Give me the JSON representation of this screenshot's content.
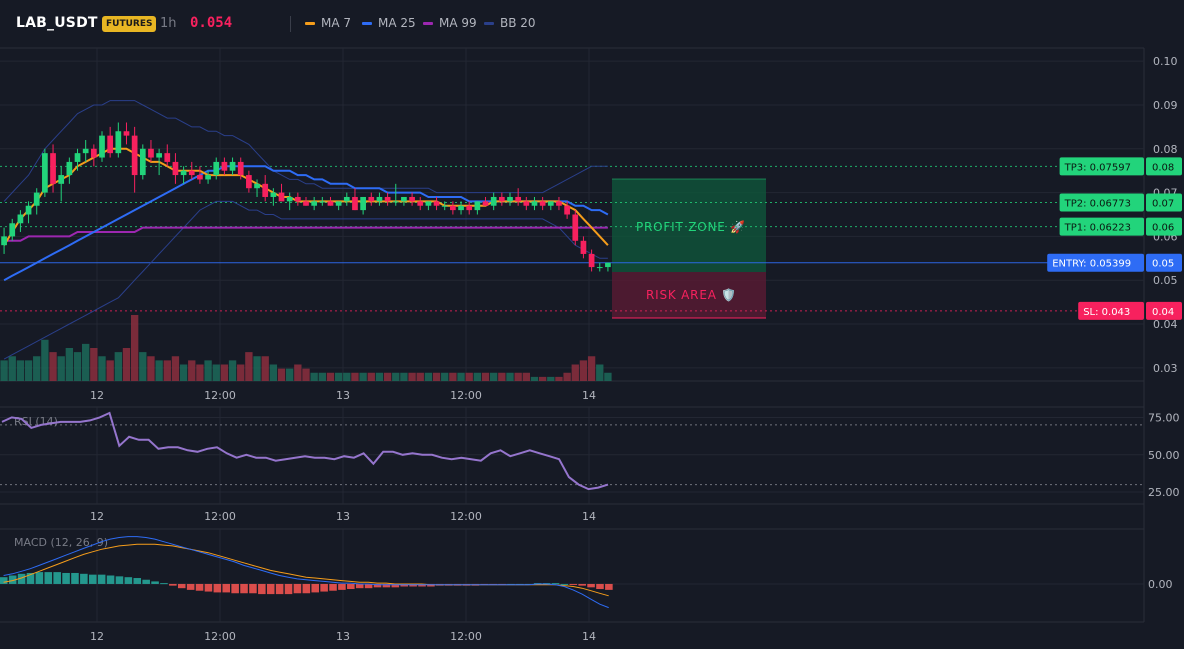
{
  "header": {
    "symbol": "LAB_USDT",
    "badge": "FUTURES",
    "timeframe": "1h",
    "price": "0.054",
    "legend": [
      {
        "name": "MA 7",
        "color": "#f59d1b"
      },
      {
        "name": "MA 25",
        "color": "#2e6cf5"
      },
      {
        "name": "MA 99",
        "color": "#9c27b0"
      },
      {
        "name": "BB 20",
        "color": "#2a3f8a"
      }
    ]
  },
  "chart_data": [
    {
      "type": "candlestick",
      "x_tick_labels": [
        "12",
        "12:00",
        "13",
        "12:00",
        "14"
      ],
      "y_tick_labels": [
        "0.10",
        "0.09",
        "0.08",
        "0.07",
        "0.06",
        "0.05",
        "0.04",
        "0.03"
      ],
      "ylim": [
        0.027,
        0.103
      ],
      "candles": [
        [
          0.058,
          0.062,
          0.056,
          0.06
        ],
        [
          0.06,
          0.064,
          0.059,
          0.063
        ],
        [
          0.063,
          0.066,
          0.061,
          0.065
        ],
        [
          0.065,
          0.068,
          0.063,
          0.067
        ],
        [
          0.067,
          0.071,
          0.065,
          0.07
        ],
        [
          0.07,
          0.08,
          0.069,
          0.079
        ],
        [
          0.079,
          0.081,
          0.07,
          0.072
        ],
        [
          0.072,
          0.076,
          0.068,
          0.074
        ],
        [
          0.074,
          0.078,
          0.072,
          0.077
        ],
        [
          0.077,
          0.08,
          0.075,
          0.079
        ],
        [
          0.079,
          0.082,
          0.077,
          0.08
        ],
        [
          0.08,
          0.081,
          0.076,
          0.078
        ],
        [
          0.078,
          0.084,
          0.077,
          0.083
        ],
        [
          0.083,
          0.085,
          0.078,
          0.079
        ],
        [
          0.079,
          0.086,
          0.078,
          0.084
        ],
        [
          0.084,
          0.086,
          0.081,
          0.083
        ],
        [
          0.083,
          0.085,
          0.07,
          0.074
        ],
        [
          0.074,
          0.081,
          0.073,
          0.08
        ],
        [
          0.08,
          0.082,
          0.077,
          0.078
        ],
        [
          0.078,
          0.08,
          0.074,
          0.079
        ],
        [
          0.079,
          0.081,
          0.076,
          0.077
        ],
        [
          0.077,
          0.079,
          0.072,
          0.074
        ],
        [
          0.074,
          0.076,
          0.072,
          0.075
        ],
        [
          0.075,
          0.077,
          0.073,
          0.074
        ],
        [
          0.074,
          0.076,
          0.072,
          0.073
        ],
        [
          0.073,
          0.075,
          0.072,
          0.074
        ],
        [
          0.074,
          0.078,
          0.073,
          0.077
        ],
        [
          0.077,
          0.078,
          0.074,
          0.075
        ],
        [
          0.075,
          0.078,
          0.074,
          0.077
        ],
        [
          0.077,
          0.078,
          0.073,
          0.074
        ],
        [
          0.074,
          0.075,
          0.07,
          0.071
        ],
        [
          0.071,
          0.073,
          0.069,
          0.072
        ],
        [
          0.072,
          0.074,
          0.068,
          0.069
        ],
        [
          0.069,
          0.071,
          0.067,
          0.07
        ],
        [
          0.07,
          0.072,
          0.068,
          0.068
        ],
        [
          0.068,
          0.07,
          0.066,
          0.069
        ],
        [
          0.069,
          0.07,
          0.067,
          0.068
        ],
        [
          0.068,
          0.069,
          0.067,
          0.067
        ],
        [
          0.067,
          0.069,
          0.066,
          0.068
        ],
        [
          0.068,
          0.069,
          0.067,
          0.068
        ],
        [
          0.068,
          0.069,
          0.067,
          0.067
        ],
        [
          0.067,
          0.068,
          0.066,
          0.068
        ],
        [
          0.068,
          0.07,
          0.067,
          0.069
        ],
        [
          0.069,
          0.071,
          0.066,
          0.066
        ],
        [
          0.066,
          0.069,
          0.065,
          0.069
        ],
        [
          0.069,
          0.07,
          0.067,
          0.068
        ],
        [
          0.068,
          0.07,
          0.067,
          0.069
        ],
        [
          0.069,
          0.07,
          0.067,
          0.068
        ],
        [
          0.068,
          0.072,
          0.067,
          0.068
        ],
        [
          0.068,
          0.069,
          0.067,
          0.069
        ],
        [
          0.069,
          0.07,
          0.067,
          0.068
        ],
        [
          0.068,
          0.069,
          0.066,
          0.067
        ],
        [
          0.067,
          0.068,
          0.066,
          0.068
        ],
        [
          0.068,
          0.069,
          0.066,
          0.067
        ],
        [
          0.067,
          0.068,
          0.066,
          0.067
        ],
        [
          0.067,
          0.068,
          0.065,
          0.066
        ],
        [
          0.066,
          0.068,
          0.065,
          0.067
        ],
        [
          0.067,
          0.068,
          0.065,
          0.066
        ],
        [
          0.066,
          0.068,
          0.065,
          0.068
        ],
        [
          0.068,
          0.069,
          0.067,
          0.067
        ],
        [
          0.067,
          0.07,
          0.066,
          0.069
        ],
        [
          0.069,
          0.07,
          0.067,
          0.068
        ],
        [
          0.068,
          0.07,
          0.067,
          0.069
        ],
        [
          0.069,
          0.071,
          0.067,
          0.068
        ],
        [
          0.068,
          0.069,
          0.066,
          0.067
        ],
        [
          0.067,
          0.069,
          0.066,
          0.068
        ],
        [
          0.068,
          0.069,
          0.066,
          0.067
        ],
        [
          0.067,
          0.068,
          0.066,
          0.068
        ],
        [
          0.068,
          0.069,
          0.066,
          0.067
        ],
        [
          0.067,
          0.068,
          0.064,
          0.065
        ],
        [
          0.065,
          0.066,
          0.058,
          0.059
        ],
        [
          0.059,
          0.06,
          0.055,
          0.056
        ],
        [
          0.056,
          0.057,
          0.052,
          0.053
        ],
        [
          0.053,
          0.054,
          0.052,
          0.053
        ],
        [
          0.053,
          0.054,
          0.052,
          0.054
        ]
      ],
      "volume": [
        5,
        6,
        5,
        5,
        6,
        10,
        7,
        6,
        8,
        7,
        9,
        8,
        6,
        5,
        7,
        8,
        16,
        7,
        6,
        5,
        5,
        6,
        4,
        5,
        4,
        5,
        4,
        4,
        5,
        4,
        7,
        6,
        6,
        4,
        3,
        3,
        4,
        3,
        2,
        2,
        2,
        2,
        2,
        2,
        2,
        2,
        2,
        2,
        2,
        2,
        2,
        2,
        2,
        2,
        2,
        2,
        2,
        2,
        2,
        2,
        2,
        2,
        2,
        2,
        2,
        1,
        1,
        1,
        1,
        2,
        4,
        5,
        6,
        4,
        2
      ],
      "ma7": [
        0.058,
        0.061,
        0.064,
        0.066,
        0.068,
        0.071,
        0.072,
        0.073,
        0.074,
        0.076,
        0.077,
        0.078,
        0.079,
        0.08,
        0.08,
        0.08,
        0.079,
        0.078,
        0.077,
        0.077,
        0.076,
        0.075,
        0.075,
        0.075,
        0.075,
        0.074,
        0.074,
        0.074,
        0.074,
        0.074,
        0.073,
        0.072,
        0.071,
        0.07,
        0.069,
        0.069,
        0.068,
        0.068,
        0.068,
        0.068,
        0.068,
        0.068,
        0.068,
        0.068,
        0.068,
        0.068,
        0.068,
        0.068,
        0.068,
        0.068,
        0.068,
        0.068,
        0.068,
        0.068,
        0.067,
        0.067,
        0.067,
        0.067,
        0.067,
        0.067,
        0.068,
        0.068,
        0.068,
        0.068,
        0.068,
        0.068,
        0.068,
        0.068,
        0.068,
        0.067,
        0.066,
        0.064,
        0.062,
        0.06,
        0.058
      ],
      "ma25": [
        0.05,
        0.051,
        0.052,
        0.053,
        0.054,
        0.055,
        0.056,
        0.057,
        0.058,
        0.059,
        0.06,
        0.061,
        0.062,
        0.063,
        0.064,
        0.065,
        0.066,
        0.067,
        0.068,
        0.069,
        0.07,
        0.071,
        0.072,
        0.073,
        0.074,
        0.075,
        0.075,
        0.076,
        0.076,
        0.076,
        0.076,
        0.076,
        0.076,
        0.075,
        0.075,
        0.075,
        0.074,
        0.074,
        0.073,
        0.073,
        0.072,
        0.072,
        0.072,
        0.071,
        0.071,
        0.071,
        0.071,
        0.07,
        0.07,
        0.07,
        0.07,
        0.07,
        0.069,
        0.069,
        0.069,
        0.069,
        0.069,
        0.068,
        0.068,
        0.068,
        0.068,
        0.068,
        0.068,
        0.068,
        0.068,
        0.068,
        0.068,
        0.068,
        0.068,
        0.068,
        0.067,
        0.067,
        0.066,
        0.066,
        0.065
      ],
      "ma99": [
        0.059,
        0.059,
        0.059,
        0.06,
        0.06,
        0.06,
        0.06,
        0.06,
        0.06,
        0.061,
        0.061,
        0.061,
        0.061,
        0.061,
        0.061,
        0.061,
        0.061,
        0.062,
        0.062,
        0.062,
        0.062,
        0.062,
        0.062,
        0.062,
        0.062,
        0.062,
        0.062,
        0.062,
        0.062,
        0.062,
        0.062,
        0.062,
        0.062,
        0.062,
        0.062,
        0.062,
        0.062,
        0.062,
        0.062,
        0.062,
        0.062,
        0.062,
        0.062,
        0.062,
        0.062,
        0.062,
        0.062,
        0.062,
        0.062,
        0.062,
        0.062,
        0.062,
        0.062,
        0.062,
        0.062,
        0.062,
        0.062,
        0.062,
        0.062,
        0.062,
        0.062,
        0.062,
        0.062,
        0.062,
        0.062,
        0.062,
        0.062,
        0.062,
        0.062,
        0.062,
        0.062,
        0.062,
        0.062,
        0.062,
        0.062
      ],
      "bb_upper": [
        0.068,
        0.07,
        0.072,
        0.074,
        0.077,
        0.08,
        0.082,
        0.084,
        0.086,
        0.088,
        0.089,
        0.09,
        0.09,
        0.091,
        0.091,
        0.091,
        0.091,
        0.09,
        0.089,
        0.088,
        0.087,
        0.087,
        0.086,
        0.085,
        0.085,
        0.084,
        0.084,
        0.083,
        0.083,
        0.082,
        0.081,
        0.079,
        0.077,
        0.075,
        0.074,
        0.073,
        0.073,
        0.072,
        0.072,
        0.071,
        0.071,
        0.071,
        0.071,
        0.071,
        0.071,
        0.071,
        0.071,
        0.071,
        0.071,
        0.071,
        0.071,
        0.071,
        0.071,
        0.07,
        0.07,
        0.07,
        0.07,
        0.07,
        0.07,
        0.07,
        0.07,
        0.07,
        0.07,
        0.07,
        0.07,
        0.07,
        0.07,
        0.071,
        0.072,
        0.073,
        0.074,
        0.075,
        0.076,
        0.076,
        0.076
      ],
      "bb_lower": [
        0.032,
        0.033,
        0.034,
        0.035,
        0.036,
        0.037,
        0.038,
        0.039,
        0.04,
        0.041,
        0.042,
        0.043,
        0.044,
        0.045,
        0.046,
        0.048,
        0.05,
        0.052,
        0.054,
        0.056,
        0.058,
        0.06,
        0.062,
        0.064,
        0.066,
        0.067,
        0.068,
        0.068,
        0.068,
        0.067,
        0.066,
        0.066,
        0.065,
        0.065,
        0.064,
        0.064,
        0.064,
        0.064,
        0.064,
        0.064,
        0.064,
        0.064,
        0.064,
        0.064,
        0.064,
        0.064,
        0.064,
        0.064,
        0.064,
        0.064,
        0.064,
        0.064,
        0.064,
        0.064,
        0.064,
        0.064,
        0.064,
        0.064,
        0.064,
        0.064,
        0.064,
        0.064,
        0.064,
        0.064,
        0.064,
        0.064,
        0.064,
        0.063,
        0.062,
        0.06,
        0.058,
        0.057,
        0.056,
        0.055,
        0.055
      ],
      "levels": [
        {
          "label": "TP3: 0.07597",
          "axis_label": "0.08",
          "value": 0.07597,
          "color": "#22d47b"
        },
        {
          "label": "TP2: 0.06773",
          "axis_label": "0.07",
          "value": 0.06773,
          "color": "#22d47b"
        },
        {
          "label": "TP1: 0.06223",
          "axis_label": "0.06",
          "value": 0.06223,
          "color": "#22d47b"
        },
        {
          "label": "ENTRY: 0.05399",
          "axis_label": "0.05",
          "value": 0.05399,
          "color": "#2e6cf5"
        },
        {
          "label": "SL: 0.043",
          "axis_label": "0.04",
          "value": 0.043,
          "color": "#f7215e"
        }
      ],
      "zones": {
        "profit": "PROFIT ZONE 🚀",
        "risk": "RISK AREA 🛡️"
      }
    },
    {
      "type": "line",
      "title": "RSI (14)",
      "y_tick_labels": [
        "75.00",
        "50.00",
        "25.00"
      ],
      "ylim": [
        17,
        82
      ],
      "overbought": 70,
      "oversold": 30,
      "values": [
        72,
        75,
        74,
        68,
        70,
        71,
        72,
        72,
        72,
        73,
        75,
        78,
        56,
        62,
        60,
        60,
        54,
        55,
        55,
        53,
        52,
        54,
        55,
        51,
        48,
        50,
        48,
        48,
        46,
        47,
        48,
        49,
        48,
        48,
        47,
        49,
        48,
        51,
        44,
        52,
        52,
        50,
        51,
        50,
        50,
        48,
        47,
        48,
        47,
        46,
        51,
        53,
        49,
        51,
        53,
        51,
        49,
        47,
        35,
        30,
        27,
        28,
        30
      ]
    },
    {
      "type": "bar",
      "title": "MACD (12, 26, 9)",
      "y_tick_labels": [
        "0.00"
      ],
      "ylim": [
        -0.0045,
        0.0065
      ],
      "histogram": [
        0.0008,
        0.001,
        0.0012,
        0.0013,
        0.0014,
        0.0014,
        0.0014,
        0.0013,
        0.0013,
        0.0012,
        0.0011,
        0.0011,
        0.001,
        0.0009,
        0.0008,
        0.0007,
        0.0005,
        0.0003,
        0.0001,
        -0.0002,
        -0.0005,
        -0.0007,
        -0.0008,
        -0.0009,
        -0.001,
        -0.001,
        -0.0011,
        -0.0011,
        -0.0011,
        -0.0012,
        -0.0012,
        -0.0012,
        -0.0012,
        -0.0011,
        -0.0011,
        -0.001,
        -0.0009,
        -0.0008,
        -0.0007,
        -0.0006,
        -0.0005,
        -0.0005,
        -0.0004,
        -0.0004,
        -0.0004,
        -0.0003,
        -0.0003,
        -0.0003,
        -0.0003,
        -0.0002,
        -0.0002,
        -0.0002,
        -0.0002,
        -0.0002,
        -0.0001,
        -0.0001,
        -0.0001,
        0.0,
        0.0,
        0.0,
        0.0001,
        0.0001,
        0.0001,
        0.0,
        -0.0001,
        -0.0002,
        -0.0004,
        -0.0006,
        -0.0007
      ],
      "macd_line": [
        0.001,
        0.0012,
        0.0015,
        0.0018,
        0.0022,
        0.0026,
        0.003,
        0.0034,
        0.0038,
        0.0042,
        0.0046,
        0.005,
        0.0053,
        0.0055,
        0.0056,
        0.0056,
        0.0055,
        0.0053,
        0.005,
        0.0047,
        0.0044,
        0.0041,
        0.0038,
        0.0035,
        0.0032,
        0.0029,
        0.0026,
        0.0022,
        0.0019,
        0.0016,
        0.0013,
        0.001,
        0.0008,
        0.0006,
        0.0005,
        0.0004,
        0.0003,
        0.0002,
        0.0001,
        0.0001,
        0.0,
        0.0,
        -0.0001,
        -0.0001,
        -0.0001,
        -0.0001,
        -0.0001,
        -0.0001,
        -0.0001,
        -0.0001,
        -0.0001,
        -0.0001,
        -0.0001,
        -0.0001,
        -0.0001,
        -0.0001,
        -0.0001,
        -0.0001,
        -0.0001,
        -0.0001,
        0.0,
        0.0,
        -0.0001,
        -0.0003,
        -0.0007,
        -0.0012,
        -0.0018,
        -0.0024,
        -0.0028
      ],
      "signal_line": [
        0.0002,
        0.0004,
        0.0007,
        0.0011,
        0.0015,
        0.0019,
        0.0023,
        0.0027,
        0.0031,
        0.0035,
        0.0038,
        0.0041,
        0.0043,
        0.0045,
        0.0046,
        0.0047,
        0.0047,
        0.0047,
        0.0046,
        0.0045,
        0.0043,
        0.0041,
        0.0039,
        0.0037,
        0.0034,
        0.0031,
        0.0028,
        0.0025,
        0.0022,
        0.0019,
        0.0016,
        0.0014,
        0.0012,
        0.001,
        0.0008,
        0.0007,
        0.0006,
        0.0005,
        0.0004,
        0.0003,
        0.0002,
        0.0002,
        0.0001,
        0.0001,
        0.0,
        0.0,
        0.0,
        0.0,
        -0.0001,
        -0.0001,
        -0.0001,
        -0.0001,
        -0.0001,
        -0.0001,
        -0.0001,
        -0.0001,
        -0.0001,
        -0.0001,
        -0.0001,
        -0.0001,
        -0.0001,
        -0.0001,
        -0.0001,
        -0.0002,
        -0.0003,
        -0.0005,
        -0.0008,
        -0.0011,
        -0.0014
      ]
    }
  ]
}
